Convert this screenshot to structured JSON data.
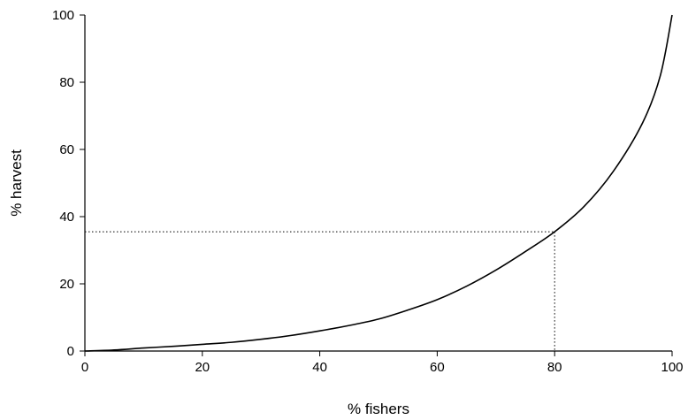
{
  "chart_data": {
    "type": "line",
    "title": "",
    "xlabel": "% fishers",
    "ylabel": "% harvest",
    "xlim": [
      0,
      100
    ],
    "ylim": [
      0,
      100
    ],
    "x_ticks": [
      0,
      20,
      40,
      60,
      80,
      100
    ],
    "y_ticks": [
      0,
      20,
      40,
      60,
      80,
      100
    ],
    "grid": false,
    "legend": "none",
    "series": [
      {
        "x": [
          0,
          5,
          10,
          15,
          20,
          25,
          30,
          35,
          40,
          45,
          50,
          55,
          60,
          65,
          70,
          75,
          80,
          85,
          90,
          95,
          98,
          100
        ],
        "y": [
          0,
          0.3,
          0.9,
          1.4,
          2.0,
          2.6,
          3.5,
          4.6,
          6.0,
          7.6,
          9.5,
          12.2,
          15.3,
          19.3,
          24.1,
          29.6,
          35.5,
          43.0,
          53.5,
          68.0,
          82.0,
          100.0
        ]
      }
    ],
    "reference_lines": [
      {
        "style": "dotted",
        "x": 80,
        "y": 35.5
      }
    ],
    "colors": {
      "line": "#000000",
      "axis": "#000000"
    }
  }
}
